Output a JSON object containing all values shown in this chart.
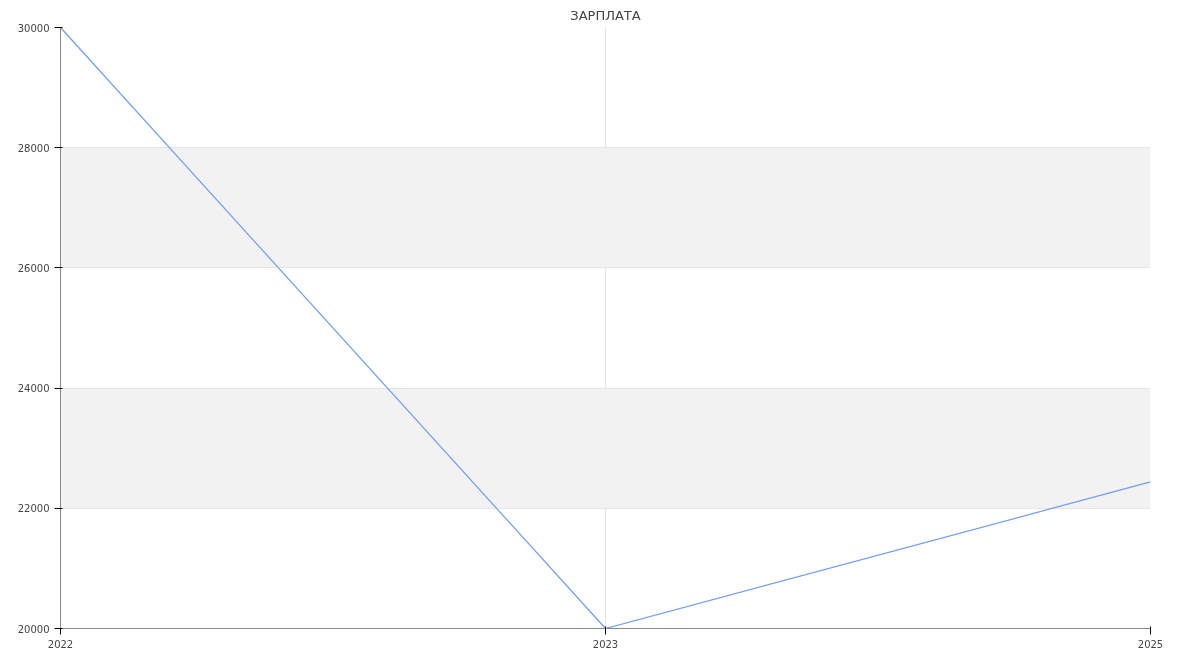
{
  "chart_data": {
    "type": "line",
    "title": "ЗАРПЛАТА",
    "categories": [
      "2022",
      "2023",
      "2025"
    ],
    "series": [
      {
        "color": "#6f9cf7",
        "values": [
          30000,
          20000,
          22440
        ]
      }
    ],
    "ylim": [
      20000,
      30000
    ],
    "yticks": [
      20000,
      22000,
      24000,
      26000,
      28000,
      30000
    ],
    "grid": true
  }
}
